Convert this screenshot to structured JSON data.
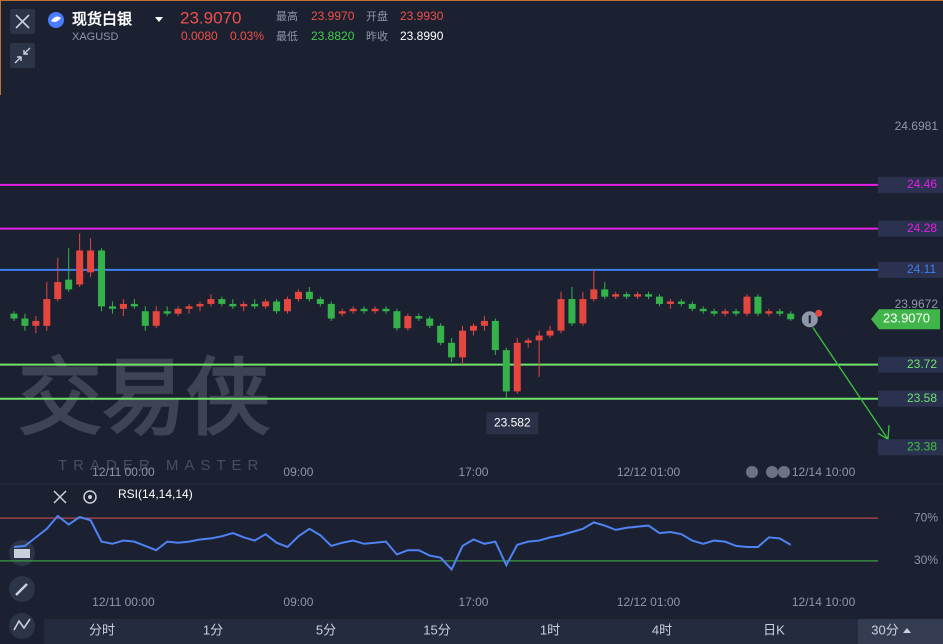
{
  "header": {
    "name": "现货白银",
    "symbol": "XAGUSD",
    "price": "23.9070",
    "change": "0.0080",
    "change_percent": "0.03%",
    "high_label": "最高",
    "high": "23.9970",
    "open_label": "开盘",
    "open": "23.9930",
    "low_label": "最低",
    "low": "23.8820",
    "prev_close_label": "昨收",
    "prev_close": "23.8990"
  },
  "chart_data": [
    {
      "type": "candlestick",
      "categories": [
        null,
        null,
        null,
        null,
        null,
        null,
        null,
        null,
        null,
        null,
        "12/11 00:00",
        null,
        null,
        null,
        null,
        null,
        null,
        null,
        null,
        null,
        null,
        null,
        null,
        null,
        null,
        null,
        "09:00",
        null,
        null,
        null,
        null,
        null,
        null,
        null,
        null,
        null,
        null,
        null,
        null,
        null,
        null,
        null,
        "17:00",
        null,
        null,
        null,
        null,
        null,
        null,
        null,
        null,
        null,
        null,
        null,
        null,
        null,
        null,
        null,
        "12/12 01:00",
        null,
        null,
        null,
        null,
        null,
        null,
        null,
        null,
        null,
        null,
        null,
        null,
        null,
        null,
        null,
        "12/14 10:00"
      ],
      "open": [
        23.93,
        23.91,
        23.88,
        23.88,
        23.99,
        24.07,
        24.05,
        24.1,
        24.19,
        23.96,
        23.95,
        23.97,
        23.94,
        23.88,
        23.94,
        23.93,
        23.95,
        23.96,
        23.97,
        23.99,
        23.97,
        23.96,
        23.97,
        23.96,
        23.98,
        23.94,
        23.99,
        24.02,
        23.99,
        23.97,
        23.93,
        23.94,
        23.95,
        23.94,
        23.95,
        23.94,
        23.87,
        23.92,
        23.91,
        23.88,
        23.81,
        23.75,
        23.86,
        23.88,
        23.9,
        23.78,
        23.61,
        23.81,
        23.82,
        23.84,
        23.86,
        23.99,
        23.89,
        23.99,
        24.03,
        24.0,
        24.01,
        24.0,
        24.01,
        24.0,
        23.97,
        23.98,
        23.97,
        23.95,
        23.94,
        23.93,
        23.94,
        23.93,
        24.0,
        23.93,
        23.94,
        23.93,
        null,
        null,
        null
      ],
      "high": [
        23.94,
        23.93,
        23.92,
        24.06,
        24.16,
        24.2,
        24.26,
        24.24,
        24.2,
        23.98,
        23.99,
        23.99,
        23.96,
        23.96,
        23.96,
        23.96,
        23.97,
        23.98,
        24.01,
        24.0,
        23.99,
        23.98,
        23.99,
        23.99,
        23.99,
        24.0,
        24.03,
        24.04,
        24.0,
        23.98,
        23.95,
        23.96,
        23.96,
        23.96,
        23.96,
        23.95,
        23.93,
        23.93,
        23.92,
        23.89,
        23.83,
        23.88,
        23.89,
        23.92,
        23.91,
        23.79,
        23.83,
        23.83,
        23.86,
        23.88,
        24.02,
        24.04,
        24.02,
        24.11,
        24.06,
        24.02,
        24.02,
        24.02,
        24.02,
        24.01,
        23.99,
        23.99,
        23.98,
        23.96,
        23.95,
        23.95,
        23.95,
        24.01,
        24.01,
        23.95,
        23.95,
        23.94,
        null,
        null,
        null
      ],
      "low": [
        23.9,
        23.86,
        23.85,
        23.86,
        23.98,
        24.02,
        24.04,
        24.08,
        23.94,
        23.93,
        23.92,
        23.95,
        23.86,
        23.87,
        23.92,
        23.92,
        23.93,
        23.94,
        23.96,
        23.96,
        23.95,
        23.94,
        23.95,
        23.95,
        23.93,
        23.93,
        23.98,
        23.98,
        23.96,
        23.9,
        23.92,
        23.93,
        23.93,
        23.93,
        23.93,
        23.86,
        23.86,
        23.9,
        23.87,
        23.8,
        23.73,
        23.72,
        23.84,
        23.86,
        23.76,
        23.582,
        23.6,
        23.79,
        23.67,
        23.83,
        23.85,
        23.88,
        23.88,
        23.98,
        23.99,
        23.99,
        23.99,
        23.99,
        23.99,
        23.96,
        23.95,
        23.96,
        23.94,
        23.93,
        23.92,
        23.92,
        23.92,
        23.92,
        23.92,
        23.92,
        23.92,
        23.9,
        null,
        null,
        null
      ],
      "close": [
        23.91,
        23.88,
        23.9,
        23.99,
        24.06,
        24.03,
        24.19,
        24.19,
        23.96,
        23.95,
        23.97,
        23.96,
        23.88,
        23.94,
        23.93,
        23.95,
        23.96,
        23.97,
        23.99,
        23.97,
        23.96,
        23.97,
        23.96,
        23.98,
        23.94,
        23.99,
        24.02,
        23.99,
        23.97,
        23.91,
        23.94,
        23.95,
        23.94,
        23.95,
        23.94,
        23.87,
        23.92,
        23.91,
        23.88,
        23.81,
        23.75,
        23.86,
        23.88,
        23.9,
        23.78,
        23.61,
        23.81,
        23.82,
        23.84,
        23.86,
        23.99,
        23.89,
        23.99,
        24.03,
        24.0,
        24.01,
        24.0,
        24.01,
        24.0,
        23.97,
        23.98,
        23.97,
        23.95,
        23.94,
        23.93,
        23.94,
        23.93,
        24.0,
        23.93,
        23.94,
        23.93,
        23.907,
        null,
        null,
        null
      ],
      "up_color": "#e5473f",
      "down_color": "#35b34a",
      "ylim": [
        23.34,
        24.83
      ],
      "yticks": [
        24.6981,
        23.9672
      ],
      "grid": false,
      "levels": [
        {
          "value": 24.46,
          "color": "#e61fe6"
        },
        {
          "value": 24.28,
          "color": "#e61fe6"
        },
        {
          "value": 24.11,
          "color": "#3f7ff0"
        },
        {
          "value": 23.72,
          "color": "#6fe46a"
        },
        {
          "value": 23.58,
          "color": "#6fe46a"
        }
      ],
      "target": {
        "value": 23.38,
        "color": "#3fc23f"
      },
      "price_tag": {
        "value": 23.907,
        "label": "23.9070",
        "color": "#3fb54a"
      },
      "low_label": 23.582,
      "watermark": {
        "title": "交易侠",
        "subtitle": "TRADER MASTER"
      }
    },
    {
      "type": "line",
      "title": "RSI(14,14,14)",
      "categories": [
        null,
        null,
        null,
        null,
        null,
        null,
        null,
        null,
        null,
        null,
        "12/11 00:00",
        null,
        null,
        null,
        null,
        null,
        null,
        null,
        null,
        null,
        null,
        null,
        null,
        null,
        null,
        null,
        "09:00",
        null,
        null,
        null,
        null,
        null,
        null,
        null,
        null,
        null,
        null,
        null,
        null,
        null,
        null,
        null,
        "17:00",
        null,
        null,
        null,
        null,
        null,
        null,
        null,
        null,
        null,
        null,
        null,
        null,
        null,
        null,
        null,
        "12/12 01:00",
        null,
        null,
        null,
        null,
        null,
        null,
        null,
        null,
        null,
        null,
        null,
        null,
        null,
        null,
        null,
        "12/14 10:00"
      ],
      "values": [
        43,
        44,
        52,
        60,
        72,
        64,
        71,
        68,
        48,
        46,
        49,
        48,
        44,
        40,
        48,
        47,
        48,
        50,
        51,
        53,
        56,
        52,
        49,
        55,
        47,
        43,
        53,
        60,
        54,
        44,
        47,
        49,
        46,
        47,
        48,
        36,
        40,
        40,
        35,
        33,
        22,
        44,
        50,
        46,
        48,
        26,
        45,
        48,
        49,
        52,
        54,
        57,
        60,
        66,
        63,
        59,
        61,
        62,
        63,
        56,
        57,
        55,
        49,
        46,
        49,
        48,
        44,
        43,
        43,
        52,
        51,
        45,
        null,
        null,
        null
      ],
      "color": "#4f82f2",
      "ylim": [
        0,
        100
      ],
      "yticks": [
        {
          "value": 70,
          "label": "70%"
        },
        {
          "value": 30,
          "label": "30%"
        }
      ],
      "tick_colors": [
        "#b5484a",
        "#3c9c44"
      ]
    }
  ],
  "toolbar": [
    "分时",
    "1分",
    "5分",
    "15分",
    "1时",
    "4时",
    "日K",
    "30分"
  ]
}
